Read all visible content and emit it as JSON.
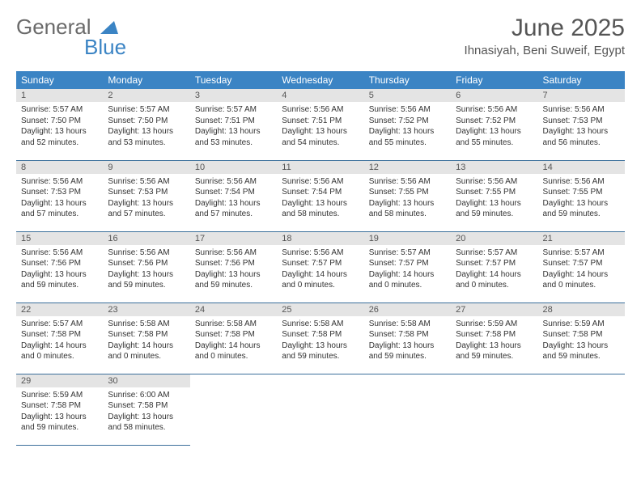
{
  "brand": {
    "word1": "General",
    "word2": "Blue"
  },
  "title": "June 2025",
  "location": "Ihnasiyah, Beni Suweif, Egypt",
  "colors": {
    "header_bg": "#3b84c4",
    "row_divider": "#3b6f9b",
    "daynum_bg": "#e4e4e4",
    "text": "#333333"
  },
  "typography": {
    "title_fontsize": 30,
    "location_fontsize": 15,
    "header_fontsize": 12,
    "daynum_fontsize": 11,
    "body_fontsize": 10
  },
  "weekdays": [
    "Sunday",
    "Monday",
    "Tuesday",
    "Wednesday",
    "Thursday",
    "Friday",
    "Saturday"
  ],
  "weeks": [
    [
      {
        "n": "1",
        "sr": "Sunrise: 5:57 AM",
        "ss": "Sunset: 7:50 PM",
        "d1": "Daylight: 13 hours",
        "d2": "and 52 minutes."
      },
      {
        "n": "2",
        "sr": "Sunrise: 5:57 AM",
        "ss": "Sunset: 7:50 PM",
        "d1": "Daylight: 13 hours",
        "d2": "and 53 minutes."
      },
      {
        "n": "3",
        "sr": "Sunrise: 5:57 AM",
        "ss": "Sunset: 7:51 PM",
        "d1": "Daylight: 13 hours",
        "d2": "and 53 minutes."
      },
      {
        "n": "4",
        "sr": "Sunrise: 5:56 AM",
        "ss": "Sunset: 7:51 PM",
        "d1": "Daylight: 13 hours",
        "d2": "and 54 minutes."
      },
      {
        "n": "5",
        "sr": "Sunrise: 5:56 AM",
        "ss": "Sunset: 7:52 PM",
        "d1": "Daylight: 13 hours",
        "d2": "and 55 minutes."
      },
      {
        "n": "6",
        "sr": "Sunrise: 5:56 AM",
        "ss": "Sunset: 7:52 PM",
        "d1": "Daylight: 13 hours",
        "d2": "and 55 minutes."
      },
      {
        "n": "7",
        "sr": "Sunrise: 5:56 AM",
        "ss": "Sunset: 7:53 PM",
        "d1": "Daylight: 13 hours",
        "d2": "and 56 minutes."
      }
    ],
    [
      {
        "n": "8",
        "sr": "Sunrise: 5:56 AM",
        "ss": "Sunset: 7:53 PM",
        "d1": "Daylight: 13 hours",
        "d2": "and 57 minutes."
      },
      {
        "n": "9",
        "sr": "Sunrise: 5:56 AM",
        "ss": "Sunset: 7:53 PM",
        "d1": "Daylight: 13 hours",
        "d2": "and 57 minutes."
      },
      {
        "n": "10",
        "sr": "Sunrise: 5:56 AM",
        "ss": "Sunset: 7:54 PM",
        "d1": "Daylight: 13 hours",
        "d2": "and 57 minutes."
      },
      {
        "n": "11",
        "sr": "Sunrise: 5:56 AM",
        "ss": "Sunset: 7:54 PM",
        "d1": "Daylight: 13 hours",
        "d2": "and 58 minutes."
      },
      {
        "n": "12",
        "sr": "Sunrise: 5:56 AM",
        "ss": "Sunset: 7:55 PM",
        "d1": "Daylight: 13 hours",
        "d2": "and 58 minutes."
      },
      {
        "n": "13",
        "sr": "Sunrise: 5:56 AM",
        "ss": "Sunset: 7:55 PM",
        "d1": "Daylight: 13 hours",
        "d2": "and 59 minutes."
      },
      {
        "n": "14",
        "sr": "Sunrise: 5:56 AM",
        "ss": "Sunset: 7:55 PM",
        "d1": "Daylight: 13 hours",
        "d2": "and 59 minutes."
      }
    ],
    [
      {
        "n": "15",
        "sr": "Sunrise: 5:56 AM",
        "ss": "Sunset: 7:56 PM",
        "d1": "Daylight: 13 hours",
        "d2": "and 59 minutes."
      },
      {
        "n": "16",
        "sr": "Sunrise: 5:56 AM",
        "ss": "Sunset: 7:56 PM",
        "d1": "Daylight: 13 hours",
        "d2": "and 59 minutes."
      },
      {
        "n": "17",
        "sr": "Sunrise: 5:56 AM",
        "ss": "Sunset: 7:56 PM",
        "d1": "Daylight: 13 hours",
        "d2": "and 59 minutes."
      },
      {
        "n": "18",
        "sr": "Sunrise: 5:56 AM",
        "ss": "Sunset: 7:57 PM",
        "d1": "Daylight: 14 hours",
        "d2": "and 0 minutes."
      },
      {
        "n": "19",
        "sr": "Sunrise: 5:57 AM",
        "ss": "Sunset: 7:57 PM",
        "d1": "Daylight: 14 hours",
        "d2": "and 0 minutes."
      },
      {
        "n": "20",
        "sr": "Sunrise: 5:57 AM",
        "ss": "Sunset: 7:57 PM",
        "d1": "Daylight: 14 hours",
        "d2": "and 0 minutes."
      },
      {
        "n": "21",
        "sr": "Sunrise: 5:57 AM",
        "ss": "Sunset: 7:57 PM",
        "d1": "Daylight: 14 hours",
        "d2": "and 0 minutes."
      }
    ],
    [
      {
        "n": "22",
        "sr": "Sunrise: 5:57 AM",
        "ss": "Sunset: 7:58 PM",
        "d1": "Daylight: 14 hours",
        "d2": "and 0 minutes."
      },
      {
        "n": "23",
        "sr": "Sunrise: 5:58 AM",
        "ss": "Sunset: 7:58 PM",
        "d1": "Daylight: 14 hours",
        "d2": "and 0 minutes."
      },
      {
        "n": "24",
        "sr": "Sunrise: 5:58 AM",
        "ss": "Sunset: 7:58 PM",
        "d1": "Daylight: 14 hours",
        "d2": "and 0 minutes."
      },
      {
        "n": "25",
        "sr": "Sunrise: 5:58 AM",
        "ss": "Sunset: 7:58 PM",
        "d1": "Daylight: 13 hours",
        "d2": "and 59 minutes."
      },
      {
        "n": "26",
        "sr": "Sunrise: 5:58 AM",
        "ss": "Sunset: 7:58 PM",
        "d1": "Daylight: 13 hours",
        "d2": "and 59 minutes."
      },
      {
        "n": "27",
        "sr": "Sunrise: 5:59 AM",
        "ss": "Sunset: 7:58 PM",
        "d1": "Daylight: 13 hours",
        "d2": "and 59 minutes."
      },
      {
        "n": "28",
        "sr": "Sunrise: 5:59 AM",
        "ss": "Sunset: 7:58 PM",
        "d1": "Daylight: 13 hours",
        "d2": "and 59 minutes."
      }
    ],
    [
      {
        "n": "29",
        "sr": "Sunrise: 5:59 AM",
        "ss": "Sunset: 7:58 PM",
        "d1": "Daylight: 13 hours",
        "d2": "and 59 minutes."
      },
      {
        "n": "30",
        "sr": "Sunrise: 6:00 AM",
        "ss": "Sunset: 7:58 PM",
        "d1": "Daylight: 13 hours",
        "d2": "and 58 minutes."
      },
      null,
      null,
      null,
      null,
      null
    ]
  ]
}
